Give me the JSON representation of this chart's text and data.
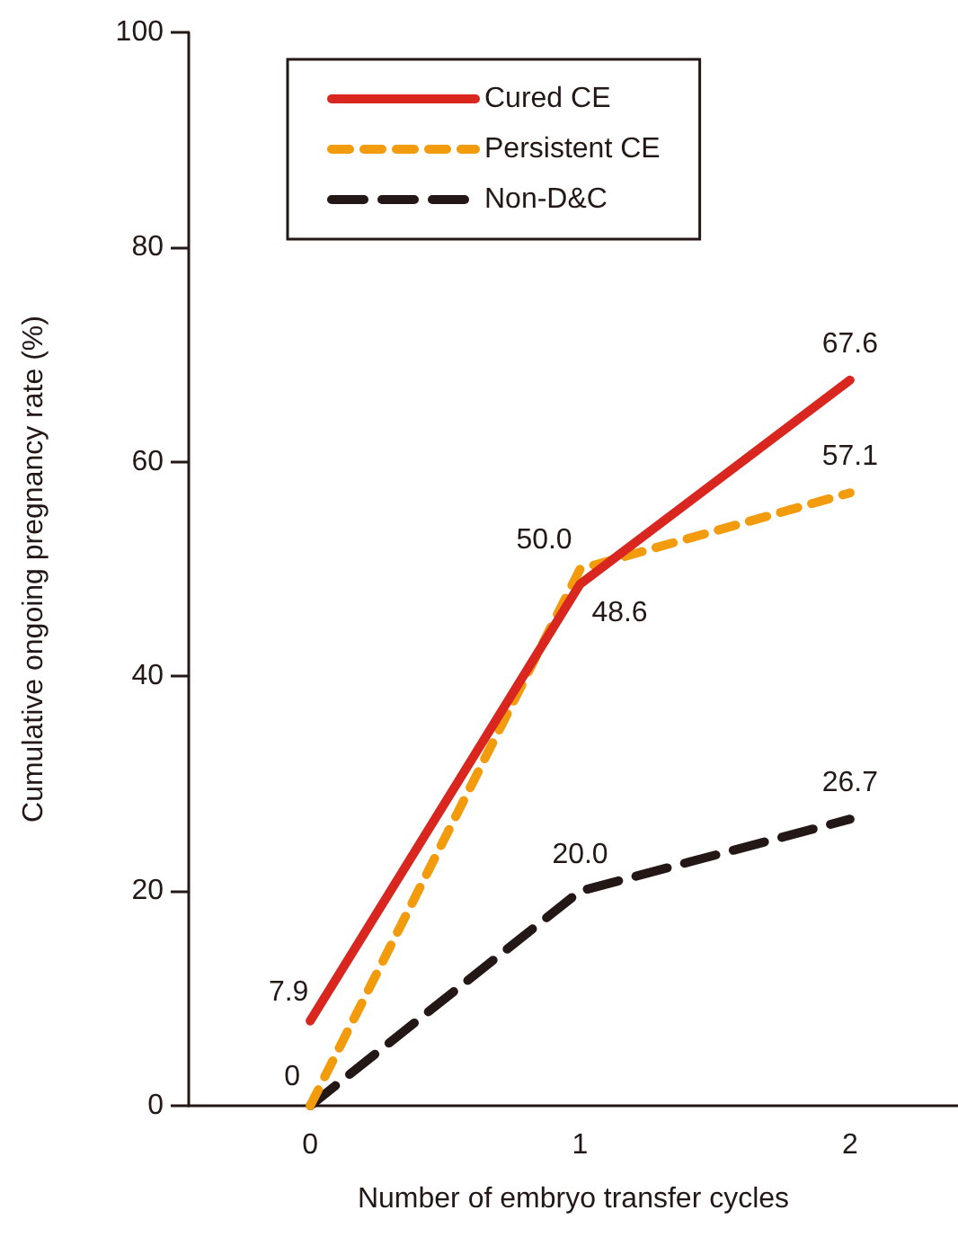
{
  "chart_data": {
    "type": "line",
    "xlabel": "Number of embryo transfer cycles",
    "ylabel": "Cumulative ongoing pregnancy rate (%)",
    "x": [
      0,
      1,
      2
    ],
    "xlim": [
      -0.45,
      2.4
    ],
    "xticks": [
      0,
      1,
      2
    ],
    "ylim": [
      0,
      100
    ],
    "yticks": [
      0,
      20,
      40,
      60,
      80,
      100
    ],
    "grid": false,
    "legend": "top left",
    "marker": "none",
    "series": [
      {
        "name": "Cured CE",
        "color": "#d9261f",
        "line_style": "solid",
        "values": [
          7.9,
          48.6,
          67.6
        ],
        "value_labels": [
          "7.9",
          "48.6",
          "67.6"
        ]
      },
      {
        "name": "Persistent CE",
        "color": "#f29c0d",
        "line_style": "dashed",
        "values": [
          0,
          50.0,
          57.1
        ],
        "value_labels": [
          null,
          "50.0",
          "57.1"
        ]
      },
      {
        "name": "Non-D&C",
        "color": "#231815",
        "line_style": "dashed",
        "values": [
          0,
          20.0,
          26.7
        ],
        "value_labels": [
          "0",
          "20.0",
          "26.7"
        ]
      }
    ]
  }
}
